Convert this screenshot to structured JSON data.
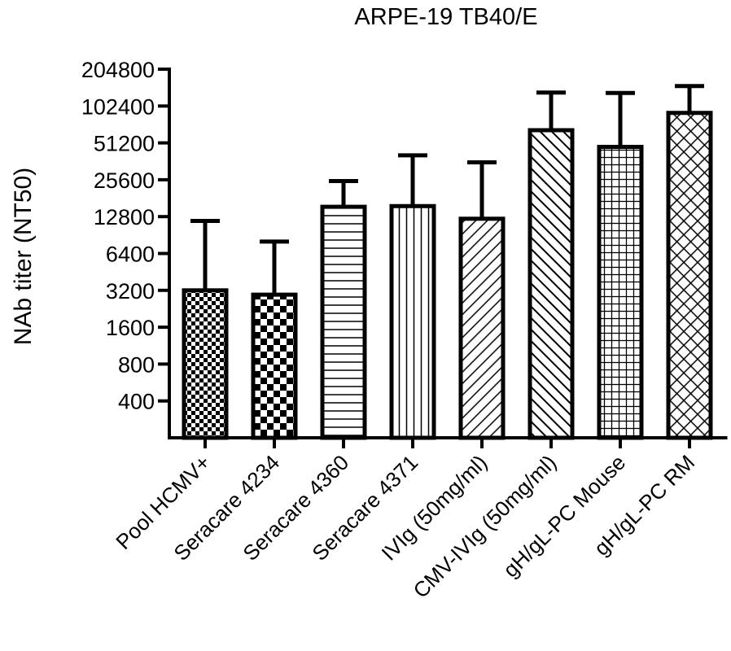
{
  "chart_data": {
    "type": "bar",
    "title": "ARPE-19 TB40/E",
    "xlabel": "",
    "ylabel": "NAb titer (NT50)",
    "yscale": "log2",
    "ylim": [
      200,
      204800
    ],
    "yticks": [
      400,
      800,
      1600,
      3200,
      6400,
      12800,
      25600,
      51200,
      102400,
      204800
    ],
    "grid": false,
    "legend": "none",
    "categories": [
      "Pool HCMV+",
      "Seracare 4234",
      "Seracare 4360",
      "Seracare 4371",
      "IVIg (50mg/ml)",
      "CMV-IVIg (50mg/ml)",
      "gH/gL-PC Mouse",
      "gH/gL-PC RM"
    ],
    "values": [
      3200,
      2950,
      15400,
      15600,
      12300,
      65000,
      47500,
      90000
    ],
    "error_upper": [
      11800,
      8000,
      25000,
      40500,
      35500,
      132000,
      131000,
      149000
    ],
    "patterns": [
      "fine-check",
      "check",
      "horizontal",
      "vertical",
      "diagonal-right",
      "diagonal-left",
      "grid",
      "crosshatch"
    ],
    "colors": {
      "bar_fill": "#ffffff",
      "ink": "#000000"
    }
  }
}
